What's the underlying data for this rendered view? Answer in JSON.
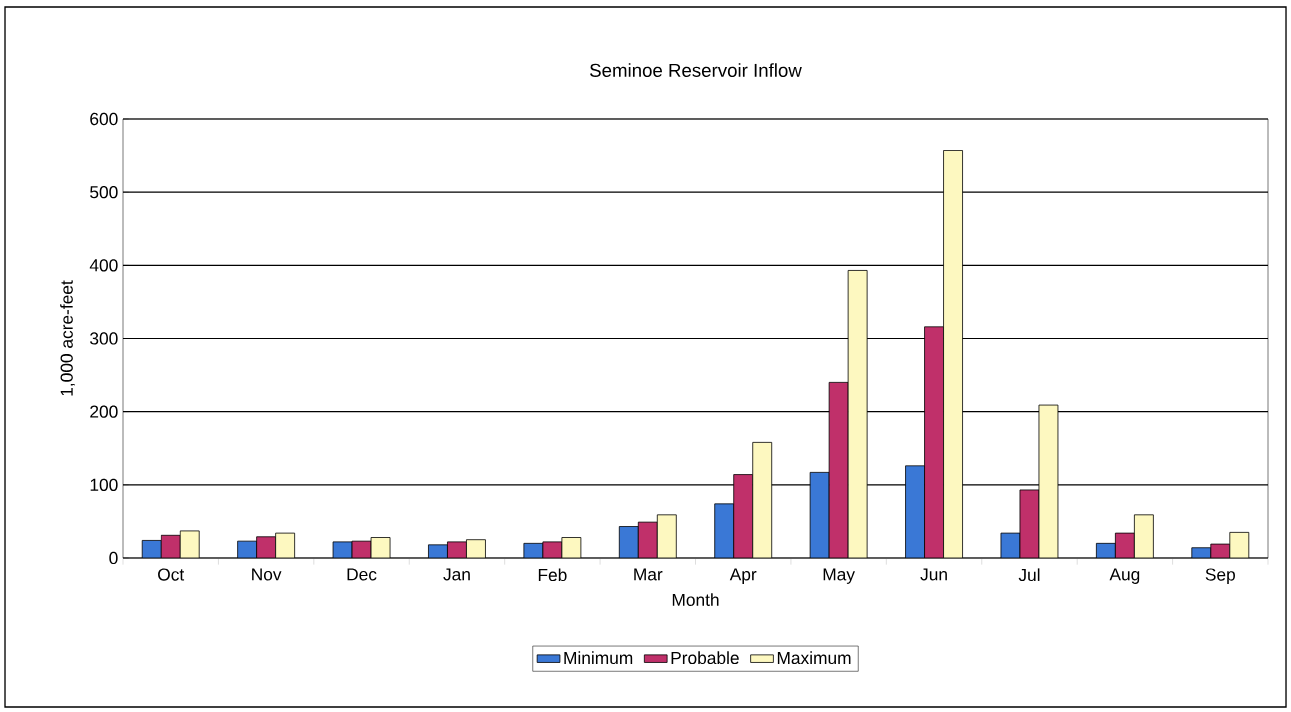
{
  "chart_data": {
    "type": "bar",
    "title": "Seminoe Reservoir Inflow",
    "xlabel": "Month",
    "ylabel": "1,000 acre-feet",
    "categories": [
      "Oct",
      "Nov",
      "Dec",
      "Jan",
      "Feb",
      "Mar",
      "Apr",
      "May",
      "Jun",
      "Jul",
      "Aug",
      "Sep"
    ],
    "series": [
      {
        "name": "Minimum",
        "color": "#3a78d6",
        "values": [
          24,
          23,
          22,
          18,
          20,
          43,
          74,
          117,
          126,
          34,
          20,
          14
        ]
      },
      {
        "name": "Probable",
        "color": "#c0306a",
        "values": [
          31,
          29,
          23,
          22,
          22,
          49,
          114,
          240,
          316,
          93,
          34,
          19
        ]
      },
      {
        "name": "Maximum",
        "color": "#fdf8c0",
        "values": [
          37,
          34,
          28,
          25,
          28,
          59,
          158,
          393,
          557,
          209,
          59,
          35
        ]
      }
    ],
    "ylim": [
      0,
      600
    ],
    "yticks": [
      0,
      100,
      200,
      300,
      400,
      500,
      600
    ],
    "grid": "y",
    "legend": "bottom"
  }
}
